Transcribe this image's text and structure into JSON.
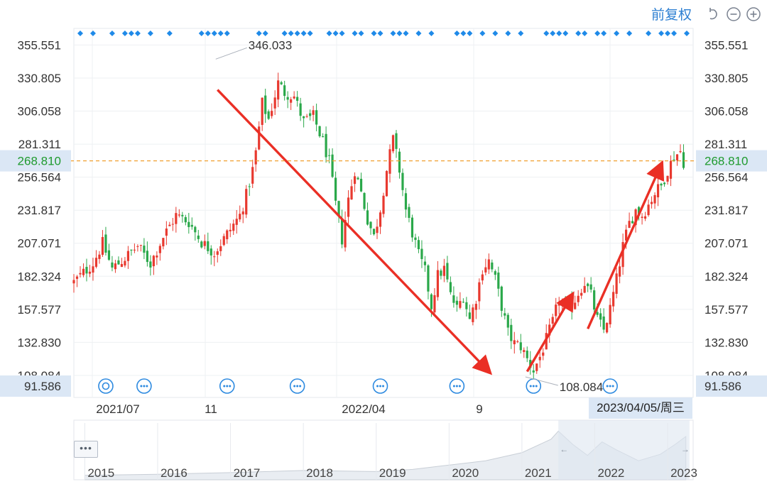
{
  "adjust_label": "前复权",
  "icons": {
    "undo": "undo-icon",
    "zoom_out": "zoom-out-icon",
    "zoom_in": "zoom-in-icon",
    "more": "more-dots-icon",
    "event": "event-marker-icon"
  },
  "colors": {
    "up": "#e8392f",
    "down": "#2aa84a",
    "accent": "#2d7fd2",
    "crosshair": "#f0a030",
    "arrow": "#ea2f25",
    "axis_highlight": "#dbe7f5"
  },
  "chart_data": {
    "type": "candlestick",
    "title": "",
    "xlabel": "",
    "ylabel": "",
    "y_axis": {
      "range": [
        91.586,
        368
      ],
      "ticks": [
        "355.551",
        "330.805",
        "306.058",
        "281.311",
        "256.564",
        "231.817",
        "207.071",
        "182.324",
        "157.577",
        "132.830",
        "108.084"
      ],
      "lower_bound_label": "91.586"
    },
    "x_axis": {
      "tick_labels": [
        "2021/07",
        "11",
        "2022/04",
        "9"
      ]
    },
    "crosshair": {
      "price": "268.810",
      "date": "2023/04/05/周三"
    },
    "annotations": {
      "high": "346.033",
      "low": "108.084"
    },
    "close_path": [
      [
        0,
        178
      ],
      [
        6,
        192
      ],
      [
        9,
        207
      ],
      [
        12,
        188
      ],
      [
        16,
        196
      ],
      [
        20,
        205
      ],
      [
        24,
        192
      ],
      [
        28,
        212
      ],
      [
        32,
        228
      ],
      [
        36,
        223
      ],
      [
        40,
        208
      ],
      [
        44,
        200
      ],
      [
        48,
        214
      ],
      [
        52,
        228
      ],
      [
        54,
        243
      ],
      [
        56,
        262
      ],
      [
        57,
        275
      ],
      [
        59,
        312
      ],
      [
        61,
        300
      ],
      [
        64,
        327
      ],
      [
        66,
        320
      ],
      [
        69,
        317
      ],
      [
        72,
        298
      ],
      [
        75,
        302
      ],
      [
        78,
        283
      ],
      [
        80,
        268
      ],
      [
        82,
        236
      ],
      [
        84,
        210
      ],
      [
        86,
        240
      ],
      [
        88,
        262
      ],
      [
        90,
        245
      ],
      [
        92,
        225
      ],
      [
        94,
        212
      ],
      [
        96,
        233
      ],
      [
        98,
        262
      ],
      [
        100,
        285
      ],
      [
        102,
        262
      ],
      [
        104,
        232
      ],
      [
        106,
        215
      ],
      [
        108,
        198
      ],
      [
        110,
        186
      ],
      [
        112,
        160
      ],
      [
        114,
        183
      ],
      [
        116,
        188
      ],
      [
        118,
        168
      ],
      [
        120,
        158
      ],
      [
        122,
        168
      ],
      [
        124,
        150
      ],
      [
        126,
        166
      ],
      [
        128,
        188
      ],
      [
        130,
        194
      ],
      [
        132,
        180
      ],
      [
        134,
        160
      ],
      [
        136,
        140
      ],
      [
        138,
        132
      ],
      [
        140,
        130
      ],
      [
        142,
        120
      ],
      [
        144,
        112
      ],
      [
        146,
        122
      ],
      [
        148,
        135
      ],
      [
        150,
        148
      ],
      [
        152,
        165
      ],
      [
        154,
        158
      ],
      [
        156,
        160
      ],
      [
        158,
        170
      ],
      [
        160,
        178
      ],
      [
        162,
        168
      ],
      [
        164,
        150
      ],
      [
        166,
        142
      ],
      [
        168,
        158
      ],
      [
        170,
        180
      ],
      [
        172,
        205
      ],
      [
        174,
        222
      ],
      [
        176,
        232
      ],
      [
        178,
        228
      ],
      [
        180,
        236
      ],
      [
        182,
        245
      ],
      [
        184,
        250
      ],
      [
        186,
        262
      ],
      [
        188,
        272
      ],
      [
        190,
        276
      ],
      [
        191,
        268
      ]
    ],
    "events_row": [
      2,
      6,
      12,
      16,
      18,
      20,
      24,
      30,
      40,
      42,
      44,
      46,
      48,
      58,
      60,
      66,
      68,
      70,
      72,
      74,
      80,
      82,
      84,
      88,
      90,
      94,
      96,
      100,
      102,
      104,
      108,
      112,
      120,
      122,
      124,
      128,
      132,
      136,
      140,
      148,
      150,
      152,
      154,
      158,
      160,
      164,
      166,
      170,
      174,
      180,
      184,
      186,
      188,
      192
    ],
    "event_icons_x": [
      10,
      22,
      48,
      70,
      96,
      120,
      144,
      168
    ],
    "arrows": [
      {
        "from": [
          45,
          322
        ],
        "to": [
          130,
          111
        ]
      },
      {
        "from": [
          142,
          111
        ],
        "to": [
          156,
          168
        ]
      },
      {
        "from": [
          161,
          143
        ],
        "to": [
          184,
          266
        ]
      }
    ],
    "overview": {
      "tick_labels": [
        "2015",
        "2016",
        "2017",
        "2018",
        "2019",
        "2020",
        "2021",
        "2022",
        "2023"
      ],
      "series": [
        [
          2015.0,
          0.03
        ],
        [
          2016.0,
          0.05
        ],
        [
          2017.0,
          0.08
        ],
        [
          2018.0,
          0.12
        ],
        [
          2019.0,
          0.1
        ],
        [
          2019.5,
          0.14
        ],
        [
          2020.0,
          0.22
        ],
        [
          2020.5,
          0.3
        ],
        [
          2021.0,
          0.45
        ],
        [
          2021.4,
          0.7
        ],
        [
          2021.5,
          0.85
        ],
        [
          2021.7,
          0.6
        ],
        [
          2021.9,
          0.4
        ],
        [
          2022.1,
          0.65
        ],
        [
          2022.3,
          0.5
        ],
        [
          2022.6,
          0.3
        ],
        [
          2022.9,
          0.42
        ],
        [
          2023.1,
          0.6
        ],
        [
          2023.25,
          0.75
        ]
      ],
      "selection": [
        2021.5,
        2023.3
      ]
    }
  }
}
